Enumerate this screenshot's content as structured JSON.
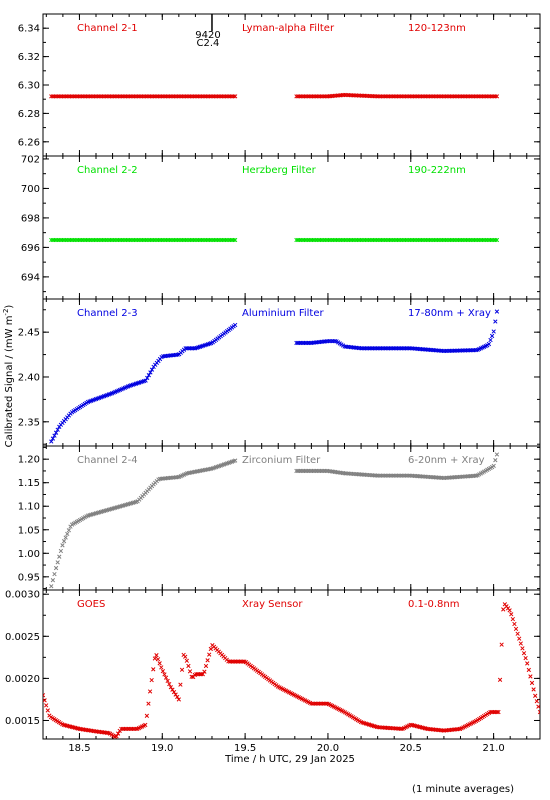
{
  "chart_data": {
    "type": "scatter",
    "xlabel": "Time / h UTC, 29 Jan 2025",
    "ylabel_prefix": "Calibrated Signal / (mW m",
    "ylabel_sup": "-2",
    "ylabel_suffix": ")",
    "footnote": "(1 minute averages)",
    "xlim": [
      18.28,
      21.28
    ],
    "x_ticks": [
      "18.5",
      "19.0",
      "19.5",
      "20.0",
      "20.5",
      "21.0"
    ],
    "x_tick_values": [
      18.5,
      19.0,
      19.5,
      20.0,
      20.5,
      21.0
    ],
    "flare_marker": {
      "x": 19.3,
      "label_top": "9420",
      "label_bottom": "C2.4"
    },
    "colors": {
      "red": "#e00000",
      "green": "#00e000",
      "blue": "#0000e0",
      "gray": "#808080"
    },
    "panels": [
      {
        "name": "Channel 2-1",
        "filter": "Lyman-alpha Filter",
        "band": "120-123nm",
        "color": "#e00000",
        "ylim": [
          6.25,
          6.35
        ],
        "y_ticks": [
          "6.26",
          "6.28",
          "6.30",
          "6.32",
          "6.34"
        ],
        "y_tick_values": [
          6.26,
          6.28,
          6.3,
          6.32,
          6.34
        ],
        "series": [
          {
            "x": [
              18.33,
              18.5,
              18.7,
              18.9,
              19.1,
              19.3,
              19.44
            ],
            "y": [
              6.292,
              6.292,
              6.292,
              6.292,
              6.292,
              6.292,
              6.292
            ]
          },
          {
            "x": [
              19.81,
              20.0,
              20.1,
              20.3,
              20.5,
              20.7,
              20.9,
              21.02
            ],
            "y": [
              6.292,
              6.292,
              6.293,
              6.292,
              6.292,
              6.292,
              6.292,
              6.292
            ]
          }
        ]
      },
      {
        "name": "Channel 2-2",
        "filter": "Herzberg Filter",
        "band": "190-222nm",
        "color": "#00e000",
        "ylim": [
          692.5,
          702.2
        ],
        "y_ticks": [
          "694",
          "696",
          "698",
          "700",
          "702"
        ],
        "y_tick_values": [
          694,
          696,
          698,
          700,
          702
        ],
        "series": [
          {
            "x": [
              18.33,
              18.5,
              18.7,
              18.9,
              19.1,
              19.3,
              19.44
            ],
            "y": [
              696.5,
              696.5,
              696.5,
              696.5,
              696.5,
              696.5,
              696.5
            ]
          },
          {
            "x": [
              19.81,
              20.0,
              20.2,
              20.4,
              20.6,
              20.8,
              21.02
            ],
            "y": [
              696.5,
              696.5,
              696.5,
              696.5,
              696.5,
              696.5,
              696.5
            ]
          }
        ]
      },
      {
        "name": "Channel 2-3",
        "filter": "Aluminium Filter",
        "band": "17-80nm + Xray",
        "color": "#0000e0",
        "ylim": [
          2.323,
          2.487
        ],
        "y_ticks": [
          "2.35",
          "2.40",
          "2.45"
        ],
        "y_tick_values": [
          2.35,
          2.4,
          2.45
        ],
        "series": [
          {
            "x": [
              18.33,
              18.38,
              18.45,
              18.55,
              18.7,
              18.8,
              18.9,
              18.95,
              19.0,
              19.1,
              19.14,
              19.2,
              19.3,
              19.44
            ],
            "y": [
              2.328,
              2.345,
              2.36,
              2.372,
              2.382,
              2.39,
              2.396,
              2.412,
              2.423,
              2.425,
              2.432,
              2.432,
              2.438,
              2.458
            ]
          },
          {
            "x": [
              19.81,
              19.9,
              20.0,
              20.05,
              20.1,
              20.2,
              20.3,
              20.5,
              20.7,
              20.9,
              20.97,
              21.0,
              21.02
            ],
            "y": [
              2.438,
              2.438,
              2.44,
              2.44,
              2.434,
              2.432,
              2.432,
              2.432,
              2.429,
              2.43,
              2.436,
              2.45,
              2.473
            ]
          }
        ]
      },
      {
        "name": "Channel 2-4",
        "filter": "Zirconium Filter",
        "band": "6-20nm + Xray",
        "color": "#808080",
        "ylim": [
          0.922,
          1.228
        ],
        "y_ticks": [
          "0.95",
          "1.00",
          "1.05",
          "1.10",
          "1.15",
          "1.20"
        ],
        "y_tick_values": [
          0.95,
          1.0,
          1.05,
          1.1,
          1.15,
          1.2
        ],
        "series": [
          {
            "x": [
              18.33,
              18.36,
              18.4,
              18.45,
              18.55,
              18.7,
              18.85,
              18.93,
              18.98,
              19.1,
              19.15,
              19.3,
              19.44
            ],
            "y": [
              0.93,
              0.97,
              1.02,
              1.06,
              1.08,
              1.095,
              1.11,
              1.14,
              1.158,
              1.162,
              1.17,
              1.18,
              1.197
            ]
          },
          {
            "x": [
              19.81,
              20.0,
              20.1,
              20.3,
              20.5,
              20.7,
              20.9,
              21.0,
              21.02
            ],
            "y": [
              1.175,
              1.175,
              1.17,
              1.165,
              1.165,
              1.16,
              1.165,
              1.185,
              1.21
            ]
          }
        ]
      },
      {
        "name": "GOES",
        "filter": "Xray Sensor",
        "band": "0.1-0.8nm",
        "color": "#e00000",
        "ylim": [
          0.00128,
          0.00305
        ],
        "y_ticks": [
          "0.0015",
          "0.0020",
          "0.0025",
          "0.0030"
        ],
        "y_tick_values": [
          0.0015,
          0.002,
          0.0025,
          0.003
        ],
        "series": [
          {
            "x": [
              18.28,
              18.32,
              18.4,
              18.5,
              18.6,
              18.68,
              18.72,
              18.75,
              18.8,
              18.85,
              18.9,
              18.93,
              18.96,
              19.0,
              19.05,
              19.1,
              19.13,
              19.15,
              19.18,
              19.2,
              19.25,
              19.3,
              19.35,
              19.4,
              19.5,
              19.6,
              19.7,
              19.8,
              19.9,
              20.0,
              20.1,
              20.2,
              20.3,
              20.45,
              20.5,
              20.6,
              20.7,
              20.8,
              20.9,
              20.98,
              21.03,
              21.06,
              21.1,
              21.15,
              21.2,
              21.25,
              21.28
            ],
            "y": [
              0.0018,
              0.00155,
              0.00145,
              0.0014,
              0.00137,
              0.00135,
              0.0013,
              0.0014,
              0.0014,
              0.0014,
              0.00145,
              0.0019,
              0.0023,
              0.0021,
              0.0019,
              0.00175,
              0.0023,
              0.0022,
              0.002,
              0.00205,
              0.00205,
              0.0024,
              0.0023,
              0.0022,
              0.0022,
              0.00205,
              0.0019,
              0.0018,
              0.0017,
              0.0017,
              0.0016,
              0.00148,
              0.00142,
              0.0014,
              0.00145,
              0.0014,
              0.00138,
              0.0014,
              0.0015,
              0.0016,
              0.0016,
              0.0029,
              0.0028,
              0.0025,
              0.0022,
              0.0018,
              0.0016
            ]
          }
        ]
      }
    ]
  }
}
